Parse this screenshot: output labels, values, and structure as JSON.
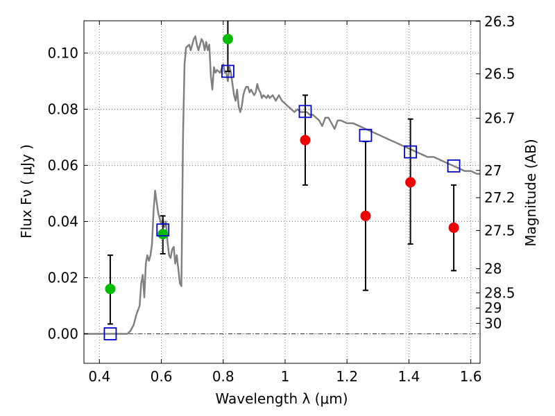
{
  "chart_data": {
    "type": "scatter",
    "title": "",
    "xlabel": "Wavelength  λ (μm)",
    "ylabel": "Flux  Fν  ( μJy )",
    "ylabel_right": "Magnitude (AB)",
    "xlim": [
      0.35,
      1.63
    ],
    "ylim": [
      -0.0105,
      0.1115
    ],
    "grid": true,
    "x_ticks": [
      0.4,
      0.6,
      0.8,
      1.0,
      1.2,
      1.4,
      1.6
    ],
    "x_tick_labels": [
      "0.4",
      "0.6",
      "0.8",
      "1",
      "1.2",
      "1.4",
      "1.6"
    ],
    "y_ticks": [
      0.0,
      0.02,
      0.04,
      0.06,
      0.08,
      0.1
    ],
    "y_tick_labels": [
      "0.00",
      "0.02",
      "0.04",
      "0.06",
      "0.08",
      "0.10"
    ],
    "right_ticks": [
      {
        "label": "26.3",
        "flux": 0.1113
      },
      {
        "label": "26.5",
        "flux": 0.0926
      },
      {
        "label": "26.7",
        "flux": 0.0768
      },
      {
        "label": "27",
        "flux": 0.0582
      },
      {
        "label": "27.2",
        "flux": 0.0485
      },
      {
        "label": "27.5",
        "flux": 0.0368
      },
      {
        "label": "28",
        "flux": 0.0232
      },
      {
        "label": "28.5",
        "flux": 0.0146
      },
      {
        "label": "29",
        "flux": 0.0092
      },
      {
        "label": "30",
        "flux": 0.0037
      }
    ],
    "colors": {
      "model": "#808080",
      "green": "#00bb00",
      "red": "#ee0000",
      "square": "#0000cc",
      "errorbar": "#000000",
      "grid": "#555555"
    },
    "series": [
      {
        "kind": "line",
        "points": [
          [
            0.33,
            0.0
          ],
          [
            0.49,
            0.0
          ],
          [
            0.5,
            0.001
          ],
          [
            0.51,
            0.003
          ],
          [
            0.52,
            0.007
          ],
          [
            0.53,
            0.01
          ],
          [
            0.535,
            0.018
          ],
          [
            0.54,
            0.021
          ],
          [
            0.545,
            0.013
          ],
          [
            0.55,
            0.025
          ],
          [
            0.555,
            0.028
          ],
          [
            0.56,
            0.026
          ],
          [
            0.565,
            0.028
          ],
          [
            0.57,
            0.032
          ],
          [
            0.575,
            0.044
          ],
          [
            0.58,
            0.051
          ],
          [
            0.585,
            0.047
          ],
          [
            0.59,
            0.043
          ],
          [
            0.6,
            0.039
          ],
          [
            0.605,
            0.041
          ],
          [
            0.61,
            0.038
          ],
          [
            0.615,
            0.04
          ],
          [
            0.62,
            0.033
          ],
          [
            0.625,
            0.028
          ],
          [
            0.63,
            0.027
          ],
          [
            0.635,
            0.03
          ],
          [
            0.64,
            0.031
          ],
          [
            0.645,
            0.025
          ],
          [
            0.65,
            0.028
          ],
          [
            0.655,
            0.023
          ],
          [
            0.66,
            0.018
          ],
          [
            0.665,
            0.017
          ],
          [
            0.67,
            0.07
          ],
          [
            0.675,
            0.096
          ],
          [
            0.68,
            0.102
          ],
          [
            0.69,
            0.103
          ],
          [
            0.695,
            0.101
          ],
          [
            0.7,
            0.103
          ],
          [
            0.705,
            0.105
          ],
          [
            0.71,
            0.106
          ],
          [
            0.715,
            0.103
          ],
          [
            0.72,
            0.101
          ],
          [
            0.725,
            0.103
          ],
          [
            0.73,
            0.105
          ],
          [
            0.735,
            0.104
          ],
          [
            0.74,
            0.101
          ],
          [
            0.745,
            0.104
          ],
          [
            0.75,
            0.101
          ],
          [
            0.755,
            0.103
          ],
          [
            0.76,
            0.092
          ],
          [
            0.765,
            0.087
          ],
          [
            0.77,
            0.095
          ],
          [
            0.775,
            0.093
          ],
          [
            0.78,
            0.094
          ],
          [
            0.79,
            0.093
          ],
          [
            0.8,
            0.096
          ],
          [
            0.805,
            0.093
          ],
          [
            0.81,
            0.093
          ],
          [
            0.815,
            0.09
          ],
          [
            0.82,
            0.095
          ],
          [
            0.825,
            0.093
          ],
          [
            0.83,
            0.089
          ],
          [
            0.835,
            0.085
          ],
          [
            0.84,
            0.083
          ],
          [
            0.845,
            0.087
          ],
          [
            0.85,
            0.081
          ],
          [
            0.855,
            0.079
          ],
          [
            0.86,
            0.081
          ],
          [
            0.865,
            0.085
          ],
          [
            0.87,
            0.087
          ],
          [
            0.875,
            0.088
          ],
          [
            0.88,
            0.088
          ],
          [
            0.885,
            0.086
          ],
          [
            0.89,
            0.087
          ],
          [
            0.895,
            0.086
          ],
          [
            0.9,
            0.085
          ],
          [
            0.905,
            0.086
          ],
          [
            0.91,
            0.089
          ],
          [
            0.915,
            0.087
          ],
          [
            0.92,
            0.086
          ],
          [
            0.925,
            0.084
          ],
          [
            0.93,
            0.085
          ],
          [
            0.94,
            0.084
          ],
          [
            0.945,
            0.085
          ],
          [
            0.95,
            0.084
          ],
          [
            0.96,
            0.085
          ],
          [
            0.97,
            0.083
          ],
          [
            0.98,
            0.085
          ],
          [
            0.99,
            0.083
          ],
          [
            1.0,
            0.082
          ],
          [
            1.01,
            0.081
          ],
          [
            1.02,
            0.08
          ],
          [
            1.03,
            0.079
          ],
          [
            1.04,
            0.08
          ],
          [
            1.05,
            0.079
          ],
          [
            1.06,
            0.079
          ],
          [
            1.07,
            0.079
          ],
          [
            1.08,
            0.078
          ],
          [
            1.09,
            0.078
          ],
          [
            1.1,
            0.077
          ],
          [
            1.11,
            0.076
          ],
          [
            1.12,
            0.074
          ],
          [
            1.13,
            0.077
          ],
          [
            1.14,
            0.077
          ],
          [
            1.15,
            0.075
          ],
          [
            1.16,
            0.073
          ],
          [
            1.17,
            0.076
          ],
          [
            1.18,
            0.076
          ],
          [
            1.2,
            0.075
          ],
          [
            1.22,
            0.075
          ],
          [
            1.24,
            0.074
          ],
          [
            1.26,
            0.073
          ],
          [
            1.28,
            0.072
          ],
          [
            1.3,
            0.071
          ],
          [
            1.32,
            0.07
          ],
          [
            1.34,
            0.069
          ],
          [
            1.36,
            0.068
          ],
          [
            1.38,
            0.067
          ],
          [
            1.4,
            0.066
          ],
          [
            1.42,
            0.065
          ],
          [
            1.44,
            0.064
          ],
          [
            1.46,
            0.063
          ],
          [
            1.48,
            0.063
          ],
          [
            1.5,
            0.062
          ],
          [
            1.52,
            0.061
          ],
          [
            1.54,
            0.06
          ],
          [
            1.56,
            0.059
          ],
          [
            1.58,
            0.058
          ],
          [
            1.6,
            0.058
          ],
          [
            1.62,
            0.057
          ],
          [
            1.63,
            0.057
          ]
        ]
      },
      {
        "kind": "points",
        "marker": "circle",
        "color_key": "green",
        "points": [
          {
            "x": 0.435,
            "y": 0.016,
            "err_lo": 0.0035,
            "err_hi": 0.028
          },
          {
            "x": 0.605,
            "y": 0.0355,
            "err_lo": 0.0285,
            "err_hi": 0.042
          },
          {
            "x": 0.815,
            "y": 0.105,
            "err_lo": 0.0935,
            "err_hi": 0.114
          }
        ]
      },
      {
        "kind": "points",
        "marker": "circle",
        "color_key": "red",
        "points": [
          {
            "x": 1.065,
            "y": 0.069,
            "err_lo": 0.053,
            "err_hi": 0.085
          },
          {
            "x": 1.26,
            "y": 0.042,
            "err_lo": 0.0155,
            "err_hi": 0.0685
          },
          {
            "x": 1.405,
            "y": 0.054,
            "err_lo": 0.032,
            "err_hi": 0.0765
          },
          {
            "x": 1.545,
            "y": 0.0378,
            "err_lo": 0.0225,
            "err_hi": 0.053
          }
        ]
      },
      {
        "kind": "points",
        "marker": "square",
        "color_key": "square",
        "points": [
          {
            "x": 0.435,
            "y": 0.0
          },
          {
            "x": 0.605,
            "y": 0.037
          },
          {
            "x": 0.815,
            "y": 0.0935
          },
          {
            "x": 1.065,
            "y": 0.0792
          },
          {
            "x": 1.26,
            "y": 0.0707
          },
          {
            "x": 1.405,
            "y": 0.0648
          },
          {
            "x": 1.545,
            "y": 0.0598
          }
        ]
      }
    ]
  }
}
